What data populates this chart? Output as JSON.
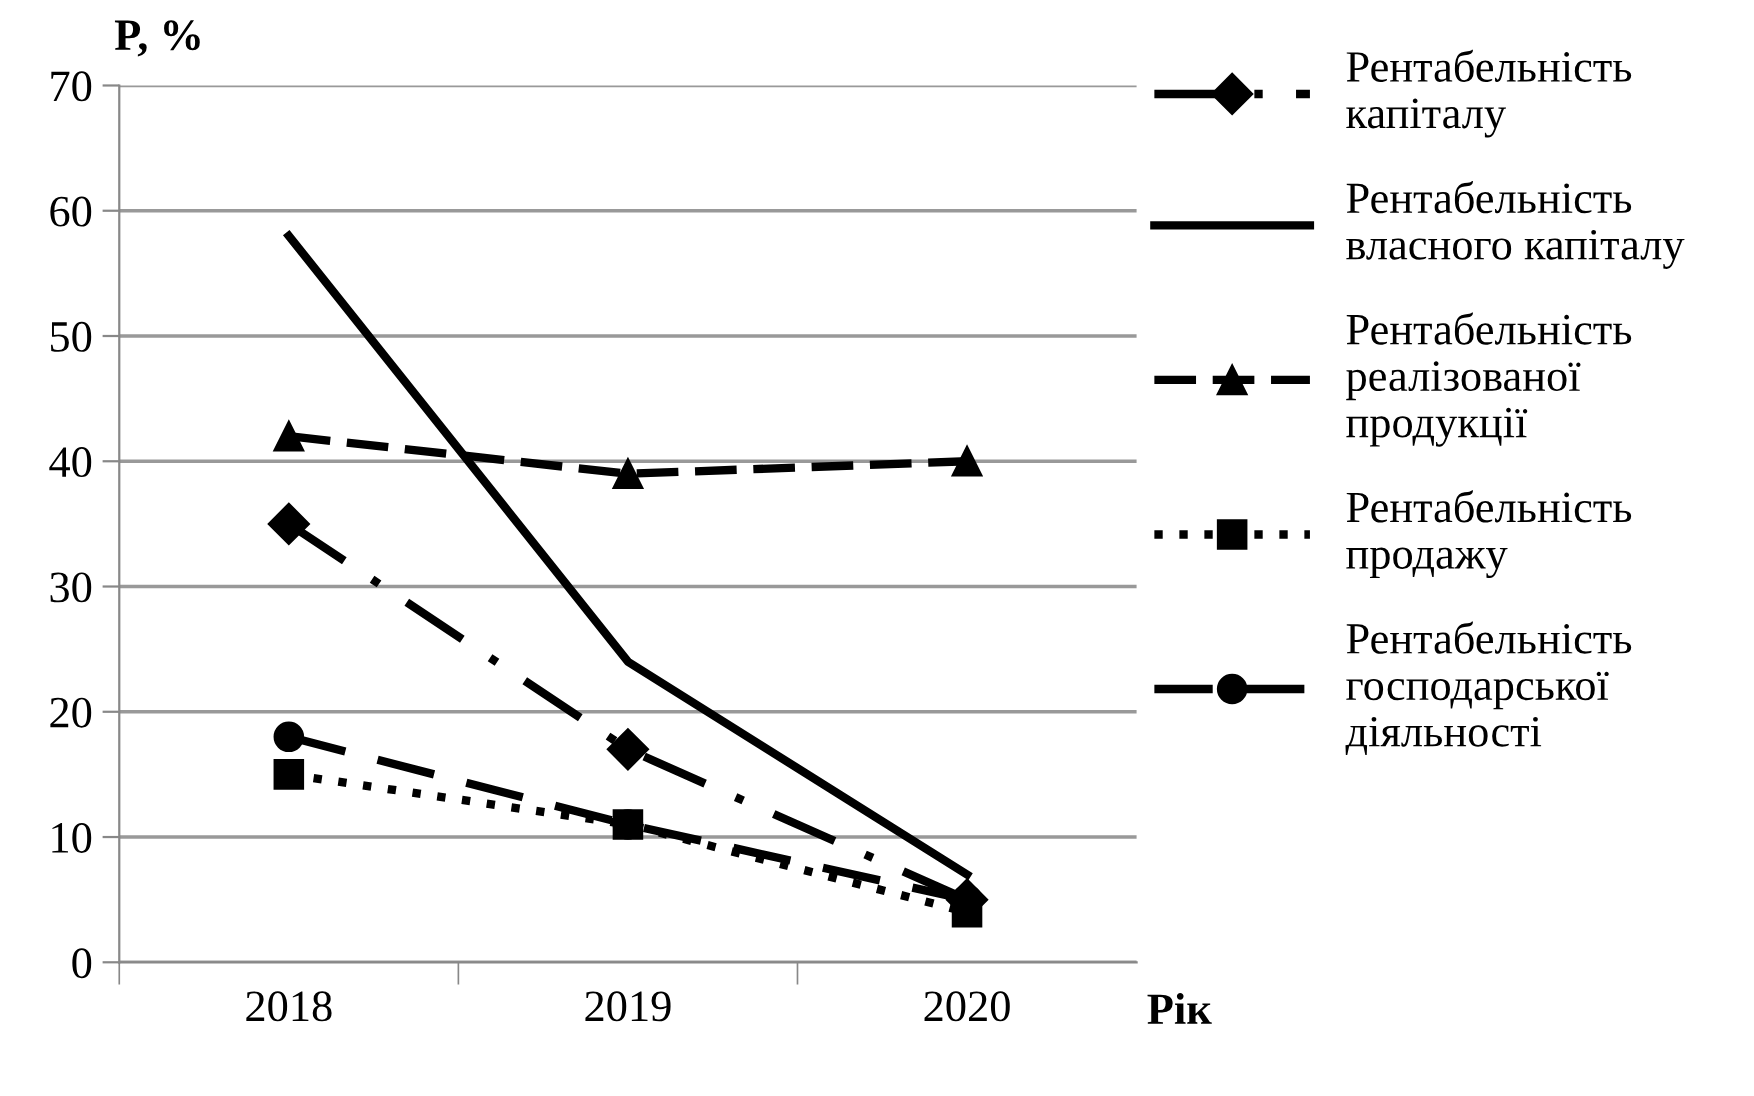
{
  "chart_data": {
    "type": "line",
    "ylabel": "P, %",
    "xlabel": "Рік",
    "categories": [
      "2018",
      "2019",
      "2020"
    ],
    "series": [
      {
        "name": "Рентабельність капіталу",
        "color": "#000000",
        "values": [
          35,
          17,
          5
        ],
        "marker": "diamond",
        "line_style": "dashdot"
      },
      {
        "name": "Рентабельність власного капіталу",
        "color": "#000000",
        "values": [
          58,
          24,
          7
        ],
        "marker": "none",
        "line_style": "solid"
      },
      {
        "name": "Рентабельність реалізованої продукції",
        "color": "#000000",
        "values": [
          42,
          39,
          40
        ],
        "marker": "triangle",
        "line_style": "dashed"
      },
      {
        "name": "Рентабельність продажу",
        "color": "#000000",
        "values": [
          15,
          11,
          4
        ],
        "marker": "square",
        "line_style": "dotted"
      },
      {
        "name": "Рентабельність господарської діяльності",
        "color": "#000000",
        "values": [
          18,
          11,
          5
        ],
        "marker": "circle",
        "line_style": "longdash"
      }
    ],
    "ylim": [
      0,
      70
    ],
    "yticks": [
      0,
      10,
      20,
      30,
      40,
      50,
      60,
      70
    ],
    "grid": "y",
    "legend": "right"
  }
}
